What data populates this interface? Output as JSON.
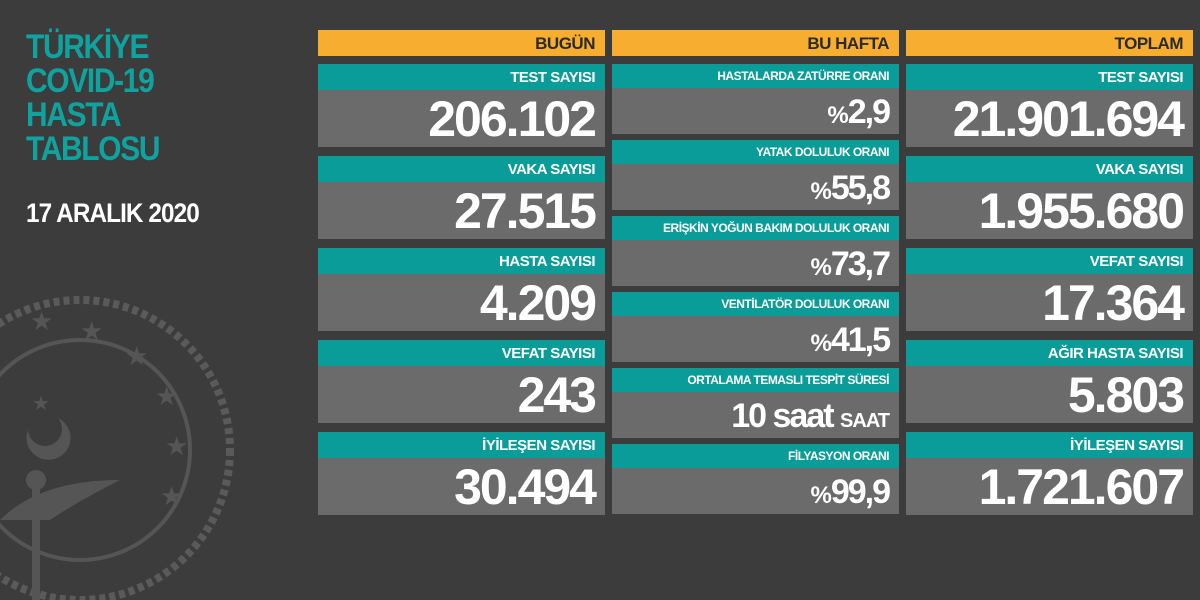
{
  "title_lines": [
    "TÜRKİYE",
    "COVID-19",
    "HASTA",
    "TABLOSU"
  ],
  "date": "17 ARALIK 2020",
  "colors": {
    "background": "#3c3c3c",
    "header": "#f6ad30",
    "label": "#0a9c99",
    "value_bg": "#6b6b6b",
    "title": "#0fa3a0"
  },
  "emblem": "ministry-of-health-emblem",
  "today": {
    "header": "BUGÜN",
    "items": [
      {
        "label": "TEST SAYISI",
        "value": "206.102"
      },
      {
        "label": "VAKA SAYISI",
        "value": "27.515"
      },
      {
        "label": "HASTA SAYISI",
        "value": "4.209"
      },
      {
        "label": "VEFAT SAYISI",
        "value": "243"
      },
      {
        "label": "İYİLEŞEN SAYISI",
        "value": "30.494"
      }
    ]
  },
  "week": {
    "header": "BU HAFTA",
    "items": [
      {
        "label": "HASTALARDA ZATÜRRE ORANI",
        "prefix": "%",
        "value": "2,9"
      },
      {
        "label": "YATAK DOLULUK ORANI",
        "prefix": "%",
        "value": "55,8"
      },
      {
        "label": "ERİŞKİN YOĞUN BAKIM DOLULUK ORANI",
        "prefix": "%",
        "value": "73,7"
      },
      {
        "label": "VENTİLATÖR DOLULUK ORANI",
        "prefix": "%",
        "value": "41,5"
      },
      {
        "label": "ORTALAMA TEMASLI TESPİT SÜRESİ",
        "value": "10 saat",
        "suffix": "SAAT"
      },
      {
        "label": "FİLYASYON ORANI",
        "prefix": "%",
        "value": "99,9"
      }
    ]
  },
  "total": {
    "header": "TOPLAM",
    "items": [
      {
        "label": "TEST SAYISI",
        "value": "21.901.694"
      },
      {
        "label": "VAKA SAYISI",
        "value": "1.955.680"
      },
      {
        "label": "VEFAT SAYISI",
        "value": "17.364"
      },
      {
        "label": "AĞIR HASTA SAYISI",
        "value": "5.803"
      },
      {
        "label": "İYİLEŞEN SAYISI",
        "value": "1.721.607"
      }
    ]
  }
}
